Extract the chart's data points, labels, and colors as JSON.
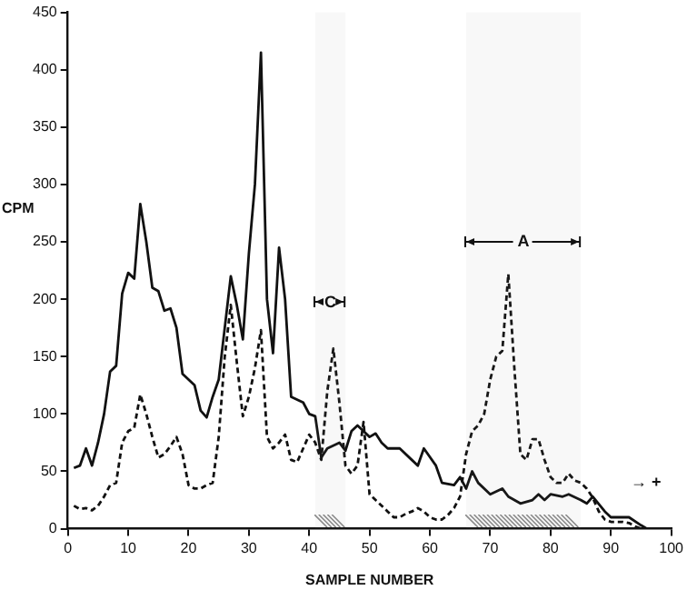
{
  "chart_data": {
    "type": "line",
    "xlabel": "SAMPLE NUMBER",
    "ylabel": "CPM",
    "xlim": [
      0,
      100
    ],
    "xticks": [
      0,
      10,
      20,
      30,
      40,
      50,
      60,
      70,
      80,
      90,
      100
    ],
    "ylim": [
      0,
      450
    ],
    "yticks": [
      0,
      50,
      100,
      150,
      200,
      250,
      300,
      350,
      400,
      450
    ],
    "grid": false,
    "legend": false,
    "marker": "none",
    "series": [
      {
        "color": "#111111",
        "line_style": "solid",
        "x": [
          1,
          2,
          3,
          4,
          5,
          6,
          7,
          8,
          9,
          10,
          11,
          12,
          13,
          14,
          15,
          16,
          17,
          18,
          19,
          20,
          21,
          22,
          23,
          24,
          25,
          26,
          27,
          28,
          29,
          30,
          31,
          32,
          33,
          34,
          35,
          36,
          37,
          39,
          40,
          41,
          42,
          43,
          45,
          46,
          47,
          48,
          49,
          50,
          51,
          52,
          53,
          55,
          57,
          58,
          59,
          61,
          62,
          64,
          65,
          66,
          67,
          68,
          70,
          72,
          73,
          75,
          77,
          78,
          79,
          80,
          82,
          83,
          85,
          86,
          87,
          89,
          90,
          93,
          95,
          96
        ],
        "values": [
          53,
          55,
          70,
          55,
          75,
          100,
          137,
          142,
          205,
          223,
          218,
          283,
          250,
          210,
          207,
          190,
          192,
          175,
          135,
          130,
          125,
          103,
          97,
          115,
          130,
          175,
          220,
          195,
          165,
          240,
          300,
          415,
          200,
          153,
          245,
          200,
          115,
          110,
          100,
          98,
          62,
          70,
          75,
          68,
          85,
          90,
          85,
          80,
          83,
          75,
          70,
          70,
          60,
          55,
          70,
          55,
          40,
          38,
          45,
          35,
          50,
          40,
          30,
          35,
          28,
          22,
          25,
          30,
          25,
          30,
          28,
          30,
          25,
          22,
          28,
          15,
          10,
          10,
          3,
          0
        ]
      },
      {
        "color": "#111111",
        "line_style": "dashed",
        "x": [
          1,
          2,
          3,
          4,
          5,
          6,
          7,
          8,
          9,
          10,
          11,
          12,
          13,
          14,
          15,
          16,
          17,
          18,
          19,
          20,
          21,
          22,
          23,
          24,
          25,
          26,
          27,
          28,
          29,
          30,
          31,
          32,
          33,
          34,
          35,
          36,
          37,
          38,
          39,
          40,
          41,
          42,
          43,
          44,
          45,
          46,
          47,
          48,
          49,
          50,
          51,
          52,
          53,
          54,
          55,
          56,
          57,
          58,
          59,
          60,
          61,
          62,
          63,
          64,
          65,
          66,
          67,
          68,
          69,
          70,
          71,
          72,
          73,
          74,
          75,
          76,
          77,
          78,
          79,
          80,
          81,
          82,
          83,
          84,
          85,
          86,
          87,
          88,
          89,
          90,
          92,
          93,
          94,
          95
        ],
        "values": [
          20,
          17,
          18,
          16,
          20,
          28,
          38,
          40,
          75,
          85,
          88,
          117,
          100,
          80,
          62,
          65,
          72,
          80,
          65,
          38,
          35,
          35,
          38,
          40,
          80,
          150,
          195,
          145,
          98,
          115,
          140,
          173,
          80,
          70,
          75,
          82,
          60,
          58,
          70,
          82,
          75,
          60,
          120,
          157,
          110,
          55,
          48,
          55,
          93,
          30,
          25,
          20,
          15,
          10,
          10,
          13,
          15,
          18,
          15,
          10,
          8,
          8,
          12,
          18,
          28,
          65,
          85,
          90,
          100,
          130,
          150,
          155,
          222,
          140,
          65,
          60,
          78,
          78,
          60,
          45,
          40,
          40,
          48,
          42,
          40,
          35,
          27,
          15,
          8,
          6,
          6,
          5,
          2,
          0
        ]
      }
    ],
    "bands": [
      {
        "axis": "x",
        "from": 41,
        "to": 46,
        "color": "#8a8a8a"
      },
      {
        "axis": "x",
        "from": 66,
        "to": 85,
        "color": "#8a8a8a"
      }
    ],
    "annotations": [
      "C",
      "A",
      "→ +"
    ]
  }
}
